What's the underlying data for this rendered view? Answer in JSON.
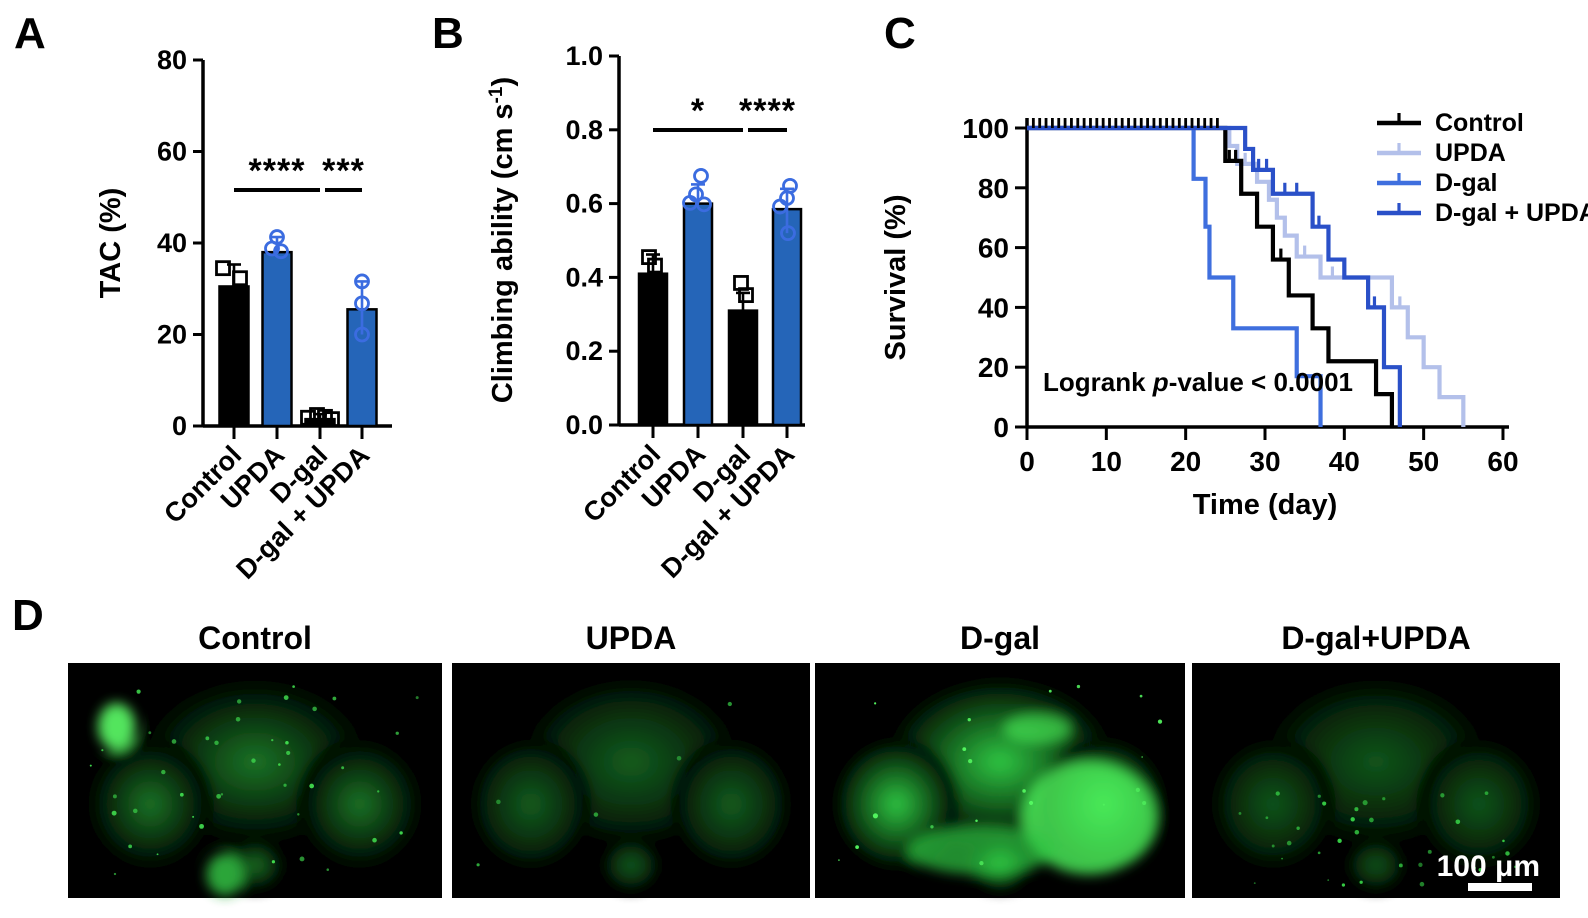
{
  "panel_letters": {
    "a": "A",
    "b": "B",
    "c": "C",
    "d": "D"
  },
  "colors": {
    "bar_blue": "#2565b8",
    "marker_blue": "#3b6ce0",
    "control": "#000000",
    "upda": "#b3c0ea",
    "dgal": "#3f6fde",
    "dgal_upda": "#2a50c8"
  },
  "chart_data": [
    {
      "id": "A",
      "type": "bar",
      "ylabel": "TAC (%)",
      "categories": [
        "Control",
        "UPDA",
        "D-gal",
        "D-gal + UPDA"
      ],
      "values": [
        30.5,
        38.0,
        1.5,
        25.5
      ],
      "errors_up": [
        4.8,
        3.3,
        1.1,
        6.1
      ],
      "errors_down": [
        0,
        0,
        0,
        5.5
      ],
      "ylim": [
        0,
        80
      ],
      "ytick_labels": [
        "0",
        "20",
        "40",
        "60",
        "80"
      ],
      "bar_fills": [
        "#000000",
        "#2565b8",
        "#000000",
        "#2565b8"
      ],
      "marker_types": [
        "square",
        "circle",
        "square",
        "circle"
      ],
      "points": [
        [
          [
            -11,
            34.5
          ],
          [
            6,
            32.3
          ]
        ],
        [
          [
            0,
            41.3
          ],
          [
            -5,
            38.8
          ],
          [
            4,
            38.2
          ]
        ],
        [
          [
            -12,
            1.8
          ],
          [
            -3,
            2.4
          ],
          [
            5,
            2.0
          ],
          [
            12,
            1.5
          ]
        ],
        [
          [
            0,
            31.6
          ],
          [
            0,
            26.8
          ],
          [
            0,
            20.0
          ]
        ]
      ],
      "significance": [
        {
          "from": 0,
          "to": 2,
          "stars": "****"
        },
        {
          "from": 2,
          "to": 3,
          "stars": "***"
        }
      ]
    },
    {
      "id": "B",
      "type": "bar",
      "ylabel": "Climbing ability (cm s⁻¹)",
      "categories": [
        "Control",
        "UPDA",
        "D-gal",
        "D-gal + UPDA"
      ],
      "values": [
        0.41,
        0.6,
        0.31,
        0.585
      ],
      "errors_up": [
        0.052,
        0.052,
        0.048,
        0.055
      ],
      "errors_down": [
        0,
        0,
        0,
        0.065
      ],
      "ylim": [
        0,
        1.0
      ],
      "ytick_labels": [
        "0.0",
        "0.2",
        "0.4",
        "0.6",
        "0.8",
        "1.0"
      ],
      "bar_fills": [
        "#000000",
        "#2565b8",
        "#000000",
        "#2565b8"
      ],
      "marker_types": [
        "square",
        "circle",
        "square",
        "circle"
      ],
      "points": [
        [
          [
            -4,
            0.455
          ],
          [
            2,
            0.432
          ]
        ],
        [
          [
            3,
            0.675
          ],
          [
            -2,
            0.625
          ],
          [
            -8,
            0.602
          ],
          [
            6,
            0.598
          ]
        ],
        [
          [
            -2,
            0.385
          ],
          [
            3,
            0.352
          ]
        ],
        [
          [
            3,
            0.648
          ],
          [
            0,
            0.615
          ],
          [
            -7,
            0.592
          ],
          [
            1,
            0.52
          ]
        ]
      ],
      "significance": [
        {
          "from": 0,
          "to": 2,
          "stars": "*"
        },
        {
          "from": 2,
          "to": 3,
          "stars": "****"
        }
      ]
    },
    {
      "id": "C",
      "type": "step",
      "xlabel": "Time (day)",
      "ylabel": "Survival (%)",
      "xlim": [
        0,
        60
      ],
      "ylim": [
        0,
        100
      ],
      "xtick_labels": [
        "0",
        "10",
        "20",
        "30",
        "40",
        "50",
        "60"
      ],
      "ytick_labels": [
        "0",
        "20",
        "40",
        "60",
        "80",
        "100"
      ],
      "annotation": "Logrank p-value < 0.0001",
      "top_censor_days": [
        0.8,
        1.6,
        2.4,
        3.2,
        4.0,
        4.8,
        5.6,
        6.4,
        7.2,
        8.0,
        8.8,
        9.6,
        10.4,
        11.2,
        12.0,
        12.8,
        13.6,
        14.4,
        15.2,
        16.0,
        16.8,
        17.6,
        18.4,
        19.2,
        20.0,
        20.8,
        21.6,
        22.4,
        23.2,
        24.0
      ],
      "series": [
        {
          "name": "UPDA",
          "color": "#b3c0ea",
          "steps": [
            [
              0,
              100
            ],
            [
              25.5,
              94
            ],
            [
              26.5,
              88
            ],
            [
              29,
              82
            ],
            [
              30.5,
              76
            ],
            [
              31.5,
              70
            ],
            [
              32.5,
              64
            ],
            [
              34,
              57
            ],
            [
              37,
              50
            ],
            [
              46,
              40
            ],
            [
              48,
              30
            ],
            [
              50,
              20
            ],
            [
              52,
              10
            ],
            [
              55,
              0
            ]
          ],
          "censors": [
            [
              27.5,
              88
            ],
            [
              35,
              57
            ],
            [
              38.5,
              50
            ],
            [
              47,
              40
            ]
          ]
        },
        {
          "name": "Control",
          "color": "#000000",
          "steps": [
            [
              0,
              100
            ],
            [
              25,
              89
            ],
            [
              27,
              78
            ],
            [
              29,
              67
            ],
            [
              31,
              56
            ],
            [
              33,
              44
            ],
            [
              36,
              33
            ],
            [
              38,
              22
            ],
            [
              44,
              11
            ],
            [
              46,
              0
            ]
          ],
          "censors": [
            [
              25.5,
              89
            ],
            [
              26.3,
              89
            ],
            [
              32,
              56
            ]
          ]
        },
        {
          "name": "D-gal",
          "color": "#3f6fde",
          "steps": [
            [
              0,
              100
            ],
            [
              21,
              83
            ],
            [
              22.5,
              67
            ],
            [
              23,
              50
            ],
            [
              26,
              33
            ],
            [
              34,
              17
            ],
            [
              37,
              0
            ]
          ],
          "censors": []
        },
        {
          "name": "D-gal + UPDA",
          "color": "#2a50c8",
          "steps": [
            [
              0,
              100
            ],
            [
              27.5,
              93
            ],
            [
              28.5,
              86
            ],
            [
              31,
              78
            ],
            [
              36,
              67
            ],
            [
              38,
              56
            ],
            [
              40,
              50
            ],
            [
              43,
              40
            ],
            [
              45,
              20
            ],
            [
              47,
              0
            ]
          ],
          "censors": [
            [
              29.2,
              86
            ],
            [
              30.2,
              86
            ],
            [
              32.5,
              78
            ],
            [
              34,
              78
            ],
            [
              36.8,
              67
            ],
            [
              43.8,
              40
            ]
          ]
        }
      ],
      "legend": [
        {
          "label": "Control",
          "color": "#000000"
        },
        {
          "label": "UPDA",
          "color": "#b3c0ea"
        },
        {
          "label": "D-gal",
          "color": "#3f6fde"
        },
        {
          "label": "D-gal + UPDA",
          "color": "#2a50c8"
        }
      ]
    }
  ],
  "panel_d": {
    "images": [
      {
        "label": "Control",
        "appearance": "mottled-speckled"
      },
      {
        "label": "UPDA",
        "appearance": "smooth-dim"
      },
      {
        "label": "D-gal",
        "appearance": "bright"
      },
      {
        "label": "D-gal+UPDA",
        "appearance": "dim-speckled-edges"
      }
    ],
    "scale_bar_text": "100 μm"
  }
}
